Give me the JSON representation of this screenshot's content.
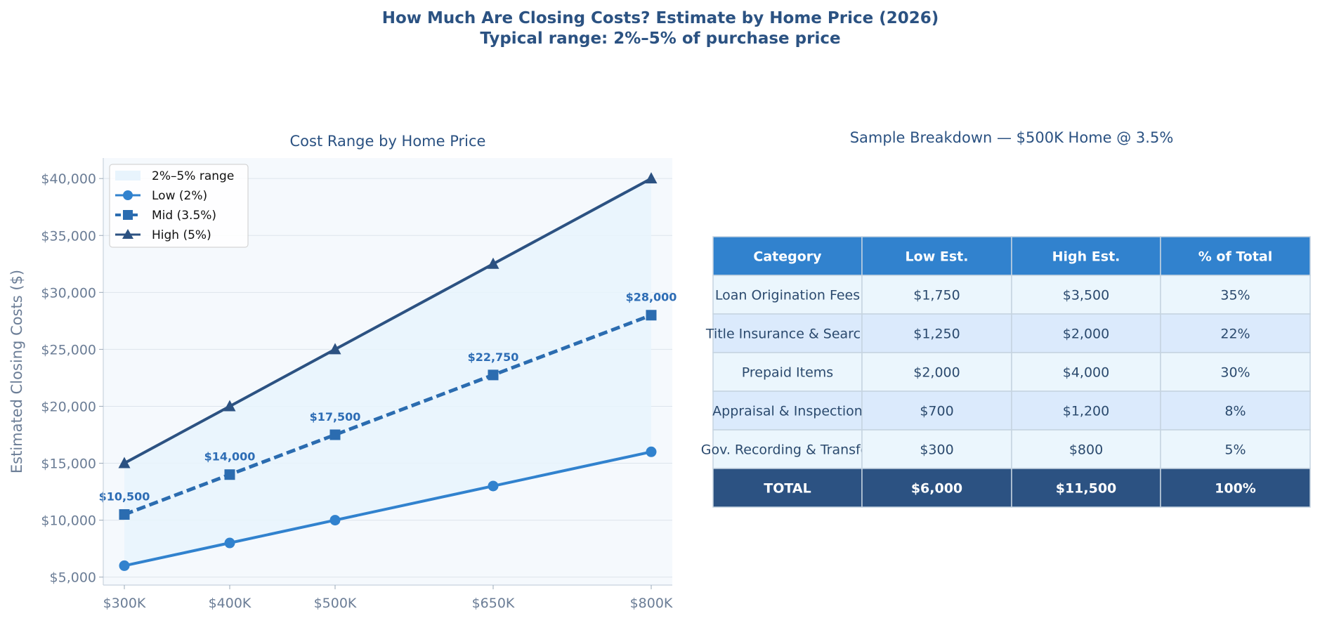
{
  "figure": {
    "title_line1": "How Much Are Closing Costs? Estimate by Home Price (2026)",
    "title_line2": "Typical range: 2%–5% of purchase price"
  },
  "colors": {
    "low": "#3182ce",
    "mid": "#2b6cb0",
    "high": "#2c5282",
    "band": "#e8f4fd",
    "plot_bg": "#f5f9fd",
    "header_bg": "#3182ce",
    "total_bg": "#2c5282",
    "row_light": "#ebf6fd",
    "row_dark": "#dbeafc"
  },
  "chart_data": [
    {
      "type": "line",
      "title": "Cost Range by Home Price",
      "xlabel": "",
      "ylabel": "Estimated Closing Costs ($)",
      "categories": [
        "$300K",
        "$400K",
        "$500K",
        "$650K",
        "$800K"
      ],
      "x": [
        300000,
        400000,
        500000,
        650000,
        800000
      ],
      "yticks": [
        "$5,000",
        "$10,000",
        "$15,000",
        "$20,000",
        "$25,000",
        "$30,000",
        "$35,000",
        "$40,000"
      ],
      "ytick_values": [
        5000,
        10000,
        15000,
        20000,
        25000,
        30000,
        35000,
        40000
      ],
      "ylim": [
        4300,
        41800
      ],
      "xlim": [
        280000,
        820000
      ],
      "grid": "horizontal",
      "legend_position": "top-left",
      "band": {
        "name": "2%–5% range",
        "lower_series": 0,
        "upper_series": 2
      },
      "series": [
        {
          "name": "Low (2%)",
          "values": [
            6000,
            8000,
            10000,
            13000,
            16000
          ],
          "marker": "circle",
          "style": "solid"
        },
        {
          "name": "Mid (3.5%)",
          "values": [
            10500,
            14000,
            17500,
            22750,
            28000
          ],
          "marker": "square",
          "style": "dashed",
          "data_labels": [
            "$10,500",
            "$14,000",
            "$17,500",
            "$22,750",
            "$28,000"
          ]
        },
        {
          "name": "High (5%)",
          "values": [
            15000,
            20000,
            25000,
            32500,
            40000
          ],
          "marker": "triangle",
          "style": "solid"
        }
      ]
    },
    {
      "type": "table",
      "title": "Sample Breakdown — $500K Home @ 3.5%",
      "columns": [
        "Category",
        "Low Est.",
        "High Est.",
        "% of Total"
      ],
      "rows": [
        [
          "Loan Origination Fees",
          "$1,750",
          "$3,500",
          "35%"
        ],
        [
          "Title Insurance & Search",
          "$1,250",
          "$2,000",
          "22%"
        ],
        [
          "Prepaid Items",
          "$2,000",
          "$4,000",
          "30%"
        ],
        [
          "Appraisal & Inspection",
          "$700",
          "$1,200",
          "8%"
        ],
        [
          "Gov. Recording & Transfer",
          "$300",
          "$800",
          "5%"
        ]
      ],
      "total_row": [
        "TOTAL",
        "$6,000",
        "$11,500",
        "100%"
      ]
    }
  ]
}
